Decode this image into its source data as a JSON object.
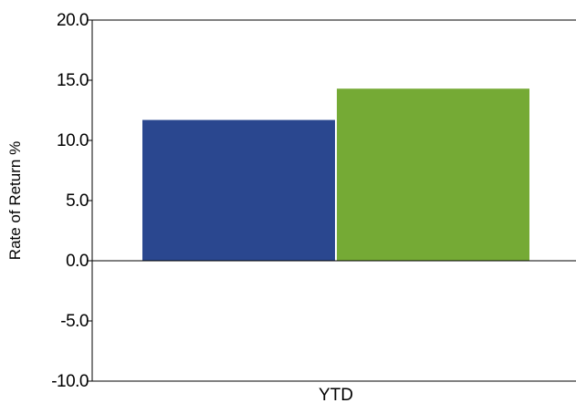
{
  "chart_data": {
    "type": "bar",
    "categories": [
      "YTD"
    ],
    "series": [
      {
        "values": [
          11.7
        ],
        "color": "#2a478f"
      },
      {
        "values": [
          14.3
        ],
        "color": "#75aa35"
      }
    ],
    "ylabel": "Rate of Return %",
    "xlabel": "",
    "ylim": [
      -10.0,
      20.0
    ],
    "yticks": [
      20.0,
      15.0,
      10.0,
      5.0,
      0.0,
      -5.0,
      -10.0
    ],
    "ytick_labels": [
      "20.0",
      "15.0",
      "10.0",
      "5.0",
      "0.0",
      "-5.0",
      "-10.0"
    ],
    "grid": false,
    "legend": "none"
  }
}
